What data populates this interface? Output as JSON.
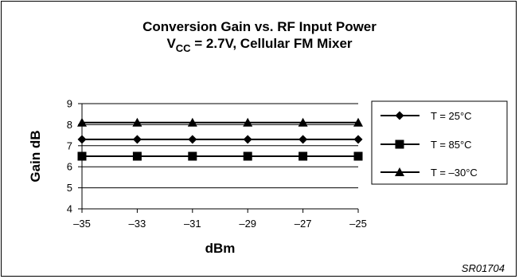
{
  "chart_data": {
    "type": "line",
    "title_main": "Conversion Gain vs. RF Input Power",
    "title_prefix": "V",
    "title_subscript": "CC",
    "title_rest": " = 2.7V, Cellular FM Mixer",
    "xlabel": "dBm",
    "ylabel": "Gain dB",
    "x": [
      -35,
      -33,
      -31,
      -29,
      -27,
      -25
    ],
    "x_tick_labels": [
      "–35",
      "–33",
      "–31",
      "–29",
      "–27",
      "–25"
    ],
    "xlim": [
      -35,
      -25
    ],
    "y_ticks": [
      4,
      5,
      6,
      7,
      8,
      9
    ],
    "y_tick_labels": [
      "4",
      "5",
      "6",
      "7",
      "8",
      "9"
    ],
    "ylim": [
      4,
      9
    ],
    "grid": "horizontal",
    "legend_position": "right",
    "series": [
      {
        "name": "T = 25°C",
        "marker": "diamond",
        "values": [
          7.3,
          7.3,
          7.3,
          7.3,
          7.3,
          7.3
        ]
      },
      {
        "name": "T = 85°C",
        "marker": "square",
        "values": [
          6.5,
          6.5,
          6.5,
          6.5,
          6.5,
          6.5
        ]
      },
      {
        "name": "T = –30°C",
        "marker": "triangle",
        "values": [
          8.1,
          8.1,
          8.1,
          8.1,
          8.1,
          8.1
        ]
      }
    ]
  },
  "figure_code": "SR01704",
  "colors": {
    "line": "#000000",
    "background": "#ffffff"
  }
}
